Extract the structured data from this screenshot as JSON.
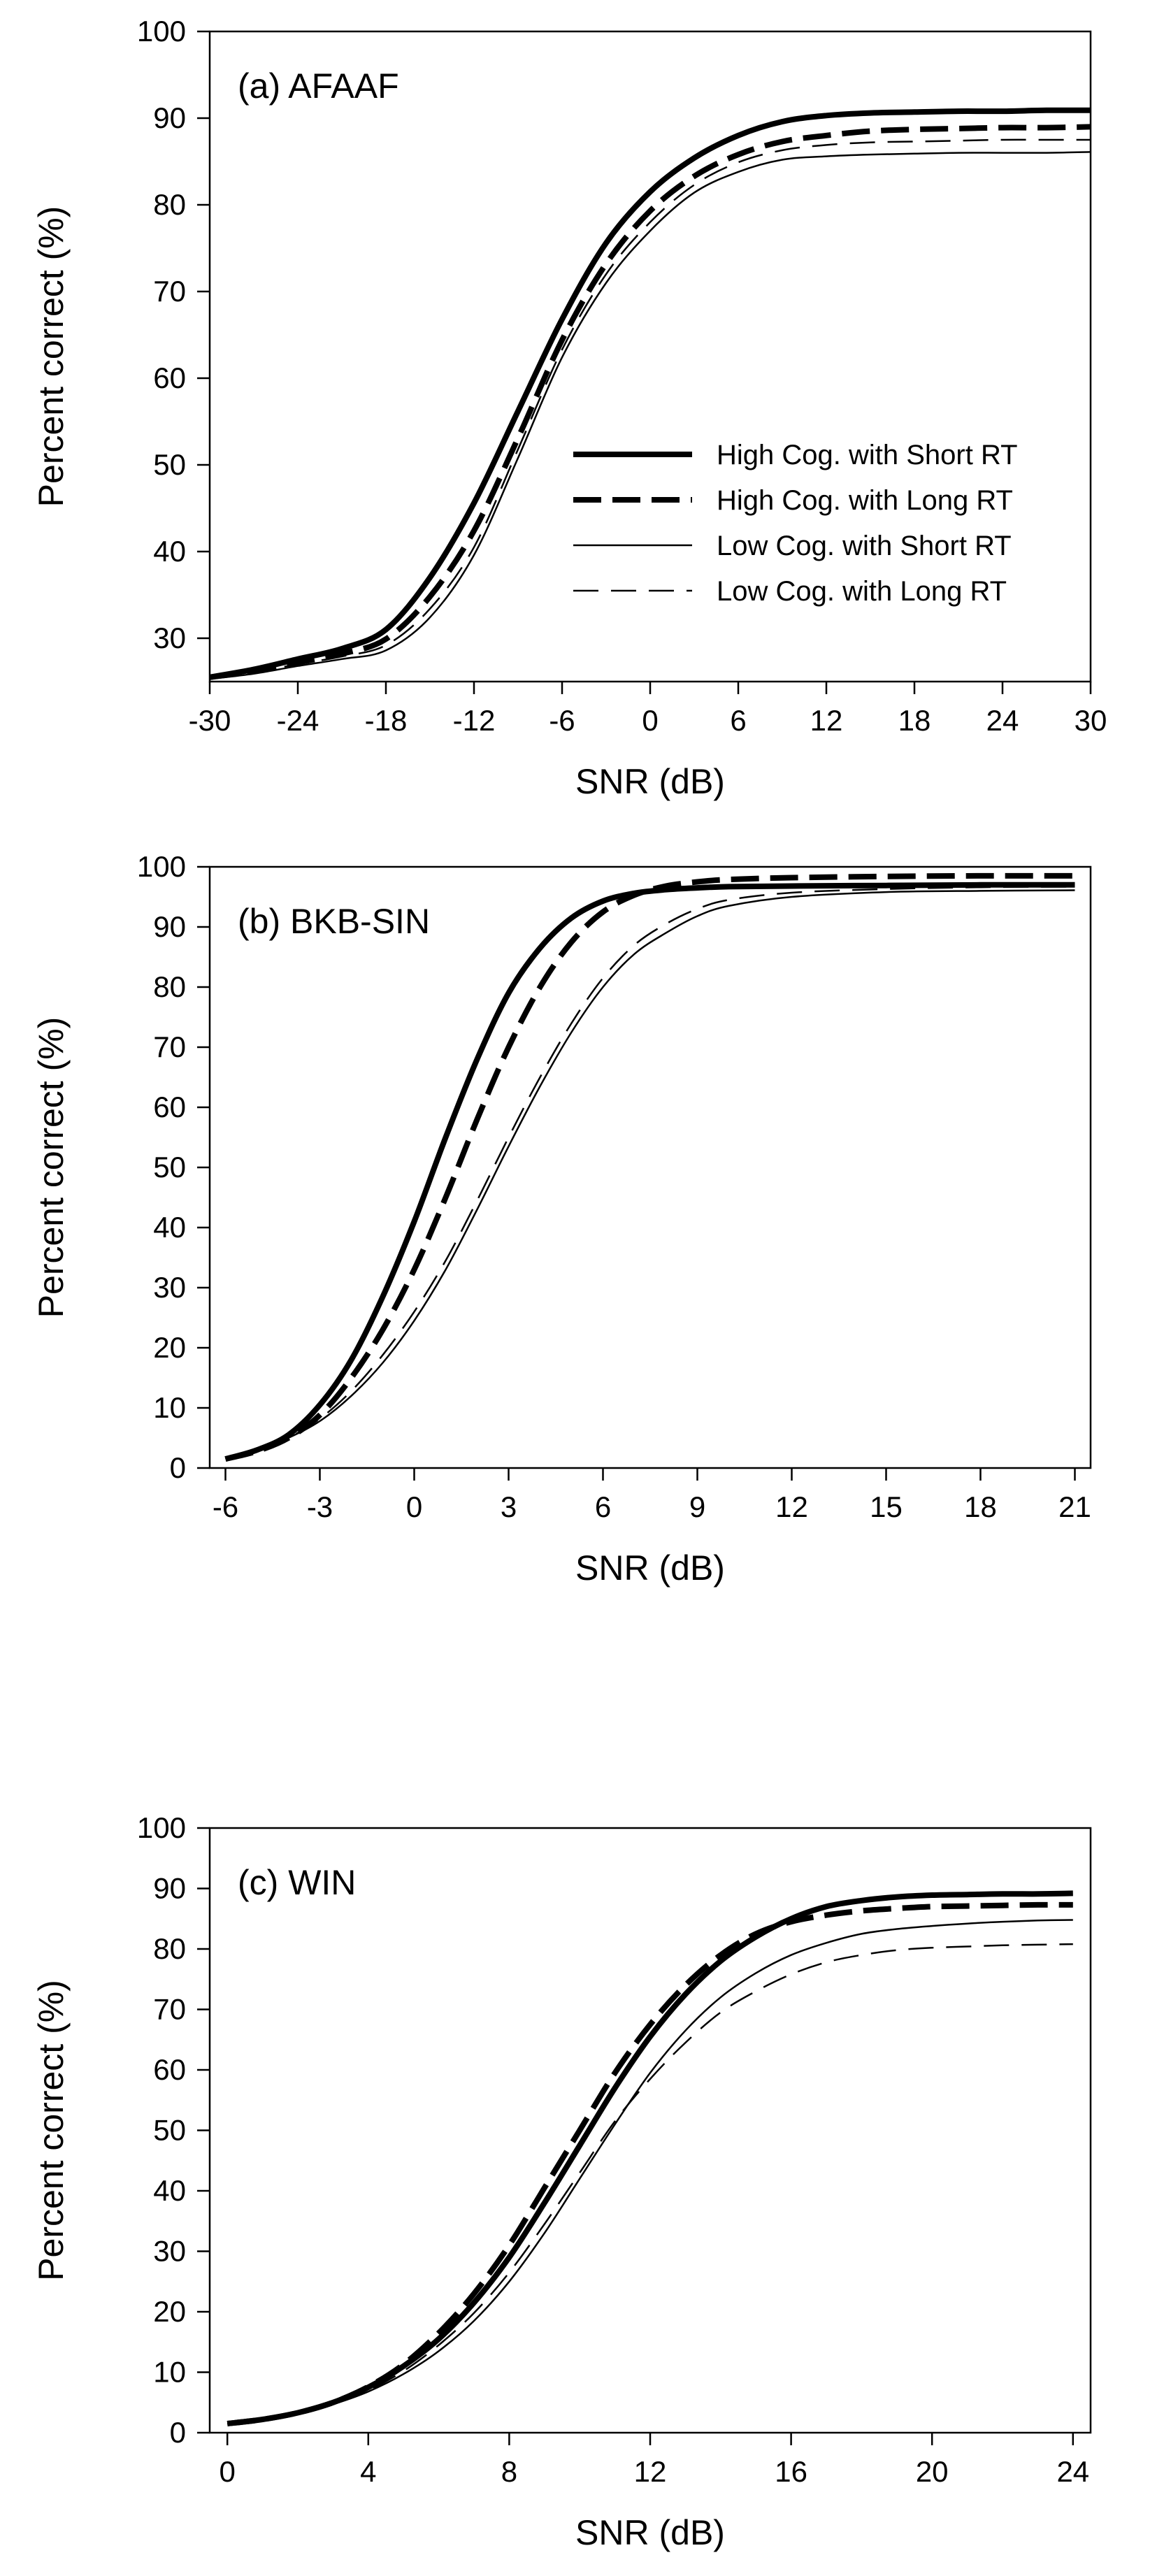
{
  "chart_data": [
    {
      "type": "line",
      "panel_label": "(a) AFAAF",
      "xlabel": "SNR (dB)",
      "ylabel": "Percent correct (%)",
      "xlim": [
        -30,
        30
      ],
      "ylim": [
        25,
        100
      ],
      "xticks": [
        "-30",
        "-24",
        "-18",
        "-12",
        "-6",
        "0",
        "6",
        "12",
        "18",
        "24",
        "30"
      ],
      "yticks": [
        "30",
        "40",
        "50",
        "60",
        "70",
        "80",
        "90",
        "100"
      ],
      "grid": false,
      "legend_position": "center-right",
      "x": [
        -30,
        -27,
        -24,
        -21,
        -18,
        -15,
        -12,
        -9,
        -6,
        -3,
        0,
        3,
        6,
        9,
        12,
        15,
        18,
        21,
        24,
        27,
        30
      ],
      "series": [
        {
          "name": "High Cog. with Short RT",
          "style": "solid-thick",
          "values": [
            25.5,
            26.4,
            27.6,
            28.8,
            31.0,
            37.0,
            45.6,
            56.2,
            66.8,
            75.6,
            81.5,
            85.4,
            88.0,
            89.6,
            90.3,
            90.6,
            90.7,
            90.8,
            90.8,
            90.9,
            90.9
          ]
        },
        {
          "name": "High Cog. with Long RT",
          "style": "dashed-thick",
          "values": [
            25.5,
            26.2,
            27.2,
            28.2,
            29.9,
            34.8,
            42.4,
            53.1,
            64.4,
            73.2,
            79.3,
            83.3,
            85.8,
            87.3,
            88.0,
            88.5,
            88.7,
            88.8,
            88.9,
            88.9,
            89.0
          ]
        },
        {
          "name": "Low Cog. with Short RT",
          "style": "solid-thin",
          "values": [
            25.3,
            25.9,
            26.8,
            27.6,
            28.6,
            32.4,
            39.6,
            50.8,
            62.4,
            71.0,
            77.0,
            81.4,
            83.8,
            85.2,
            85.6,
            85.8,
            85.9,
            86.0,
            86.0,
            86.0,
            86.1
          ]
        },
        {
          "name": "Low Cog. with Long RT",
          "style": "dashed-thin",
          "values": [
            25.4,
            26.1,
            27.0,
            27.9,
            29.2,
            33.4,
            40.5,
            51.8,
            63.3,
            72.0,
            78.0,
            82.3,
            84.9,
            86.3,
            86.9,
            87.2,
            87.3,
            87.4,
            87.5,
            87.5,
            87.5
          ]
        }
      ]
    },
    {
      "type": "line",
      "panel_label": "(b) BKB-SIN",
      "xlabel": "SNR (dB)",
      "ylabel": "Percent correct (%)",
      "xlim": [
        -6.5,
        21.5
      ],
      "ylim": [
        0,
        100
      ],
      "xticks": [
        "-6",
        "-3",
        "0",
        "3",
        "6",
        "9",
        "12",
        "15",
        "18",
        "21"
      ],
      "yticks": [
        "0",
        "10",
        "20",
        "30",
        "40",
        "50",
        "60",
        "70",
        "80",
        "90",
        "100"
      ],
      "grid": false,
      "x": [
        -6,
        -5,
        -4,
        -3,
        -2,
        -1,
        0,
        1,
        2,
        3,
        4,
        5,
        6,
        7,
        8,
        9,
        10,
        12,
        15,
        18,
        21
      ],
      "series": [
        {
          "name": "High Cog. with Short RT",
          "style": "solid-thick",
          "values": [
            1.5,
            3.0,
            5.5,
            10.5,
            18.0,
            28.5,
            41.0,
            55.0,
            68.0,
            79.0,
            86.5,
            91.5,
            94.3,
            95.6,
            96.2,
            96.5,
            96.7,
            96.8,
            96.9,
            97.0,
            97.0
          ]
        },
        {
          "name": "High Cog. with Long RT",
          "style": "dashed-thick",
          "values": [
            1.5,
            2.8,
            5.0,
            8.8,
            15.0,
            23.0,
            33.0,
            45.0,
            58.0,
            70.0,
            80.0,
            87.5,
            92.5,
            95.3,
            96.8,
            97.5,
            97.9,
            98.2,
            98.4,
            98.5,
            98.5
          ]
        },
        {
          "name": "Low Cog. with Short RT",
          "style": "solid-thin",
          "values": [
            1.5,
            2.8,
            5.0,
            7.8,
            12.0,
            17.5,
            24.5,
            33.0,
            43.0,
            53.5,
            63.5,
            72.5,
            80.0,
            85.5,
            89.0,
            91.8,
            93.5,
            95.0,
            95.8,
            96.0,
            96.1
          ]
        },
        {
          "name": "Low Cog. with Long RT",
          "style": "dashed-thin",
          "values": [
            1.5,
            2.8,
            5.0,
            8.2,
            12.8,
            18.8,
            26.0,
            34.5,
            44.5,
            55.0,
            65.0,
            74.0,
            81.5,
            87.0,
            90.5,
            93.0,
            94.5,
            95.7,
            96.3,
            96.6,
            96.7
          ]
        }
      ]
    },
    {
      "type": "line",
      "panel_label": "(c) WIN",
      "xlabel": "SNR (dB)",
      "ylabel": "Percent correct (%)",
      "xlim": [
        -0.5,
        24.5
      ],
      "ylim": [
        0,
        100
      ],
      "xticks": [
        "0",
        "4",
        "8",
        "12",
        "16",
        "20",
        "24"
      ],
      "yticks": [
        "0",
        "10",
        "20",
        "30",
        "40",
        "50",
        "60",
        "70",
        "80",
        "90",
        "100"
      ],
      "grid": false,
      "x": [
        0,
        1,
        2,
        3,
        4,
        5,
        6,
        7,
        8,
        9,
        10,
        11,
        12,
        13,
        14,
        15,
        16,
        17,
        18,
        19,
        20,
        21,
        22,
        23,
        24
      ],
      "series": [
        {
          "name": "High Cog. with Short RT",
          "style": "solid-thick",
          "values": [
            1.5,
            2.2,
            3.3,
            5.0,
            7.5,
            11.0,
            15.5,
            21.5,
            29.0,
            38.0,
            47.5,
            57.0,
            65.5,
            72.5,
            78.0,
            82.0,
            85.0,
            87.0,
            88.0,
            88.6,
            88.9,
            89.0,
            89.1,
            89.1,
            89.2
          ]
        },
        {
          "name": "High Cog. with Long RT",
          "style": "dashed-thick",
          "values": [
            1.5,
            2.2,
            3.3,
            5.0,
            7.6,
            11.3,
            16.5,
            23.0,
            31.0,
            40.5,
            50.0,
            59.5,
            67.5,
            74.0,
            79.0,
            82.5,
            84.5,
            85.6,
            86.3,
            86.7,
            87.0,
            87.1,
            87.2,
            87.3,
            87.3
          ]
        },
        {
          "name": "Low Cog. with Short RT",
          "style": "solid-thin",
          "values": [
            1.5,
            2.1,
            3.1,
            4.7,
            6.8,
            9.7,
            13.5,
            18.5,
            25.0,
            33.0,
            42.0,
            51.0,
            59.5,
            66.5,
            72.0,
            76.0,
            79.0,
            81.0,
            82.5,
            83.3,
            83.8,
            84.2,
            84.5,
            84.7,
            84.8
          ]
        },
        {
          "name": "Low Cog. with Long RT",
          "style": "dashed-thin",
          "values": [
            1.5,
            2.2,
            3.2,
            4.8,
            7.0,
            10.2,
            14.5,
            19.8,
            26.5,
            34.5,
            43.0,
            51.5,
            58.5,
            64.5,
            69.5,
            73.0,
            75.8,
            77.8,
            79.0,
            79.8,
            80.2,
            80.4,
            80.6,
            80.7,
            80.8
          ]
        }
      ]
    }
  ]
}
